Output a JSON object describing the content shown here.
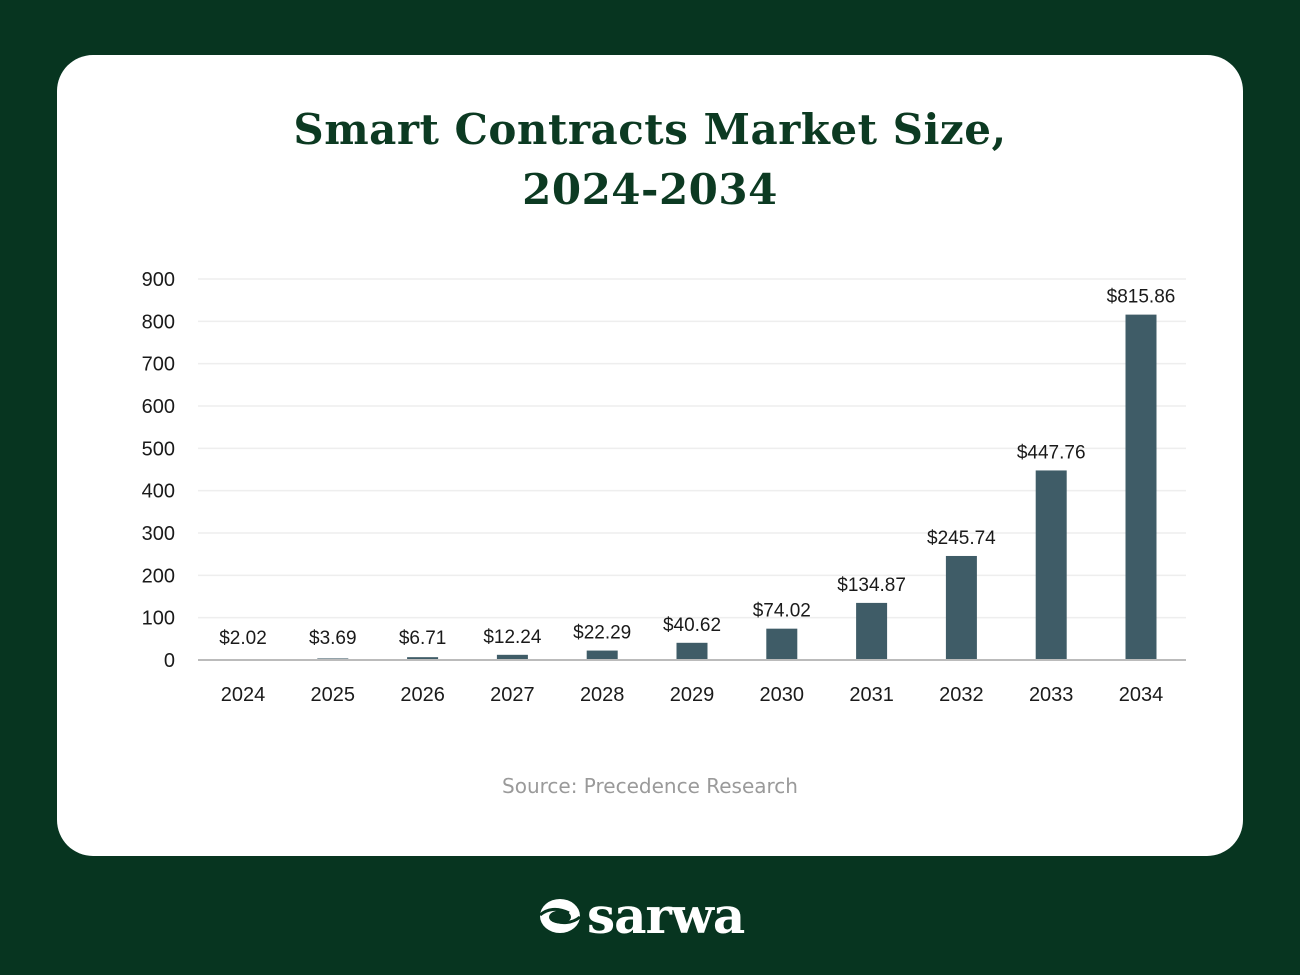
{
  "page": {
    "source_text": "Source: Precedence Research",
    "brand": "sarwa",
    "colors": {
      "background": "#073520",
      "card": "#ffffff",
      "title": "#0c3a22",
      "bar": "#3f5c67",
      "gridline": "#eeeeee",
      "axis": "#bbbbbb",
      "source_text": "#9a9a9a"
    }
  },
  "chart_data": {
    "type": "bar",
    "title": "Smart Contracts Market Size,",
    "subtitle": "2024-2034",
    "title_lines": [
      "Smart Contracts Market Size,",
      "2024-2034"
    ],
    "xlabel": "",
    "ylabel": "",
    "ylim": [
      0,
      900
    ],
    "yticks": [
      0,
      100,
      200,
      300,
      400,
      500,
      600,
      700,
      800,
      900
    ],
    "ytick_labels": [
      "0",
      "100",
      "200",
      "300",
      "400",
      "500",
      "600",
      "700",
      "800",
      "900"
    ],
    "grid": true,
    "legend": "none",
    "categories": [
      "2024",
      "2025",
      "2026",
      "2027",
      "2028",
      "2029",
      "2030",
      "2031",
      "2032",
      "2033",
      "2034"
    ],
    "values": [
      2.02,
      3.69,
      6.71,
      12.24,
      22.29,
      40.62,
      74.02,
      134.87,
      245.74,
      447.76,
      815.86
    ],
    "data_labels": [
      "$2.02",
      "$3.69",
      "$6.71",
      "$12.24",
      "$22.29",
      "$40.62",
      "$74.02",
      "$134.87",
      "$245.74",
      "$447.76",
      "$815.86"
    ]
  }
}
